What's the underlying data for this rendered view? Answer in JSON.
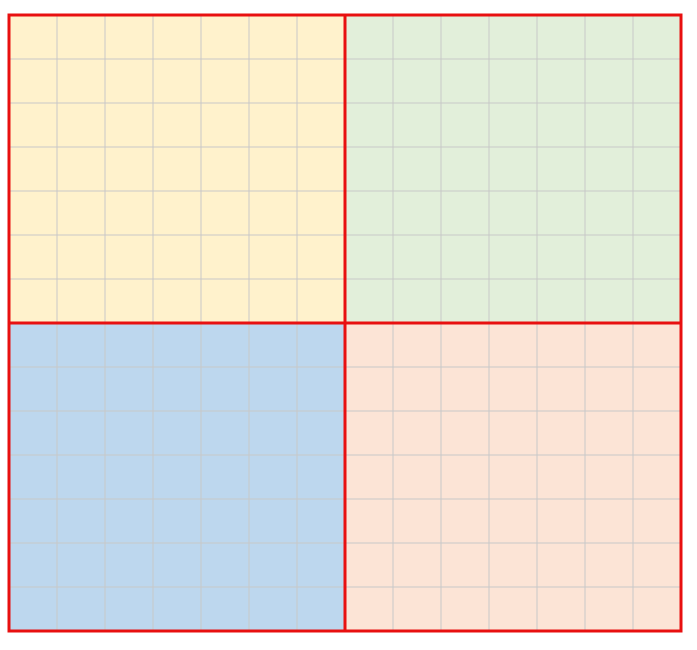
{
  "quadrants": [
    {
      "id": "top-left",
      "color": "#FFF2CC"
    },
    {
      "id": "top-right",
      "color": "#E2EFDA"
    },
    {
      "id": "bottom-left",
      "color": "#BDD7EE"
    },
    {
      "id": "bottom-right",
      "color": "#FCE4D6"
    }
  ],
  "gridline_color": "#C8C8C8",
  "border_color": "#E81010",
  "columns_per_quadrant": 7,
  "rows_top": 7,
  "rows_bottom": 7
}
